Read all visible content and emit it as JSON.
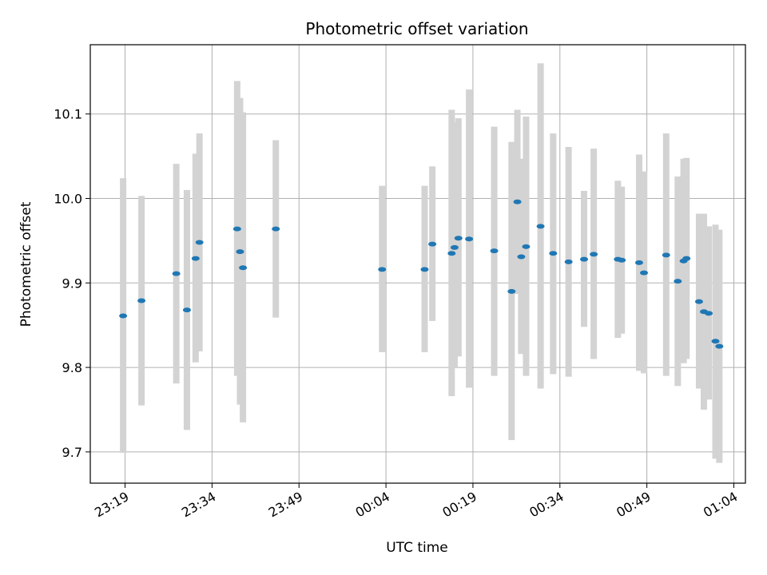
{
  "chart_data": {
    "type": "scatter",
    "title": "Photometric offset variation",
    "xlabel": "UTC time",
    "ylabel": "Photometric offset",
    "x_tick_labels": [
      "23:19",
      "23:34",
      "23:49",
      "00:04",
      "00:19",
      "00:34",
      "00:49",
      "01:04"
    ],
    "y_tick_labels": [
      "9.7",
      "9.8",
      "9.9",
      "10.0",
      "10.1"
    ],
    "y_ticks": [
      9.7,
      9.8,
      9.9,
      10.0,
      10.1
    ],
    "x_ticks": [
      "23:19",
      "23:34",
      "23:49",
      "00:04",
      "00:19",
      "00:34",
      "00:49",
      "01:04"
    ],
    "xlim": [
      "23:13",
      "01:06"
    ],
    "ylim": [
      9.663,
      10.182
    ],
    "grid": true,
    "marker_color": "#1f77b4",
    "errorbar_color": "#d3d3d3",
    "series": [
      {
        "points": [
          {
            "t": "23:18:40",
            "y": 9.861,
            "ylo": 9.699,
            "yhi": 10.024
          },
          {
            "t": "23:21:50",
            "y": 9.879,
            "ylo": 9.755,
            "yhi": 10.003
          },
          {
            "t": "23:27:50",
            "y": 9.911,
            "ylo": 9.781,
            "yhi": 10.041
          },
          {
            "t": "23:29:40",
            "y": 9.868,
            "ylo": 9.726,
            "yhi": 10.01
          },
          {
            "t": "23:31:10",
            "y": 9.929,
            "ylo": 9.806,
            "yhi": 10.053
          },
          {
            "t": "23:31:50",
            "y": 9.948,
            "ylo": 9.819,
            "yhi": 10.077
          },
          {
            "t": "23:38:20",
            "y": 9.964,
            "ylo": 9.79,
            "yhi": 10.139
          },
          {
            "t": "23:38:50",
            "y": 9.937,
            "ylo": 9.756,
            "yhi": 10.119
          },
          {
            "t": "23:39:20",
            "y": 9.918,
            "ylo": 9.735,
            "yhi": 10.102
          },
          {
            "t": "23:45:00",
            "y": 9.964,
            "ylo": 9.859,
            "yhi": 10.069
          },
          {
            "t": "00:03:20",
            "y": 9.916,
            "ylo": 9.818,
            "yhi": 10.015
          },
          {
            "t": "00:10:40",
            "y": 9.916,
            "ylo": 9.818,
            "yhi": 10.015
          },
          {
            "t": "00:12:00",
            "y": 9.946,
            "ylo": 9.855,
            "yhi": 10.038
          },
          {
            "t": "00:15:20",
            "y": 9.935,
            "ylo": 9.766,
            "yhi": 10.105
          },
          {
            "t": "00:15:50",
            "y": 9.942,
            "ylo": 9.8,
            "yhi": 10.09
          },
          {
            "t": "00:16:30",
            "y": 9.953,
            "ylo": 9.813,
            "yhi": 10.095
          },
          {
            "t": "00:18:20",
            "y": 9.952,
            "ylo": 9.776,
            "yhi": 10.129
          },
          {
            "t": "00:22:40",
            "y": 9.938,
            "ylo": 9.79,
            "yhi": 10.085
          },
          {
            "t": "00:25:40",
            "y": 9.89,
            "ylo": 9.714,
            "yhi": 10.067
          },
          {
            "t": "00:26:40",
            "y": 9.996,
            "ylo": 9.887,
            "yhi": 10.105
          },
          {
            "t": "00:27:20",
            "y": 9.931,
            "ylo": 9.816,
            "yhi": 10.047
          },
          {
            "t": "00:28:10",
            "y": 9.943,
            "ylo": 9.79,
            "yhi": 10.097
          },
          {
            "t": "00:30:40",
            "y": 9.967,
            "ylo": 9.775,
            "yhi": 10.16
          },
          {
            "t": "00:32:50",
            "y": 9.935,
            "ylo": 9.792,
            "yhi": 10.077
          },
          {
            "t": "00:35:30",
            "y": 9.925,
            "ylo": 9.789,
            "yhi": 10.061
          },
          {
            "t": "00:38:10",
            "y": 9.928,
            "ylo": 9.848,
            "yhi": 10.009
          },
          {
            "t": "00:39:50",
            "y": 9.934,
            "ylo": 9.81,
            "yhi": 10.059
          },
          {
            "t": "00:44:00",
            "y": 9.928,
            "ylo": 9.835,
            "yhi": 10.021
          },
          {
            "t": "00:44:40",
            "y": 9.927,
            "ylo": 9.84,
            "yhi": 10.014
          },
          {
            "t": "00:47:40",
            "y": 9.924,
            "ylo": 9.796,
            "yhi": 10.052
          },
          {
            "t": "00:48:30",
            "y": 9.912,
            "ylo": 9.793,
            "yhi": 10.032
          },
          {
            "t": "00:52:20",
            "y": 9.933,
            "ylo": 9.79,
            "yhi": 10.077
          },
          {
            "t": "00:54:20",
            "y": 9.902,
            "ylo": 9.778,
            "yhi": 10.026
          },
          {
            "t": "00:55:20",
            "y": 9.926,
            "ylo": 9.805,
            "yhi": 10.047
          },
          {
            "t": "00:55:50",
            "y": 9.929,
            "ylo": 9.81,
            "yhi": 10.048
          },
          {
            "t": "00:58:00",
            "y": 9.878,
            "ylo": 9.775,
            "yhi": 9.982
          },
          {
            "t": "00:58:50",
            "y": 9.866,
            "ylo": 9.75,
            "yhi": 9.982
          },
          {
            "t": "00:59:40",
            "y": 9.864,
            "ylo": 9.762,
            "yhi": 9.967
          },
          {
            "t": "01:00:50",
            "y": 9.831,
            "ylo": 9.692,
            "yhi": 9.969
          },
          {
            "t": "01:01:30",
            "y": 9.825,
            "ylo": 9.687,
            "yhi": 9.963
          }
        ]
      }
    ]
  }
}
